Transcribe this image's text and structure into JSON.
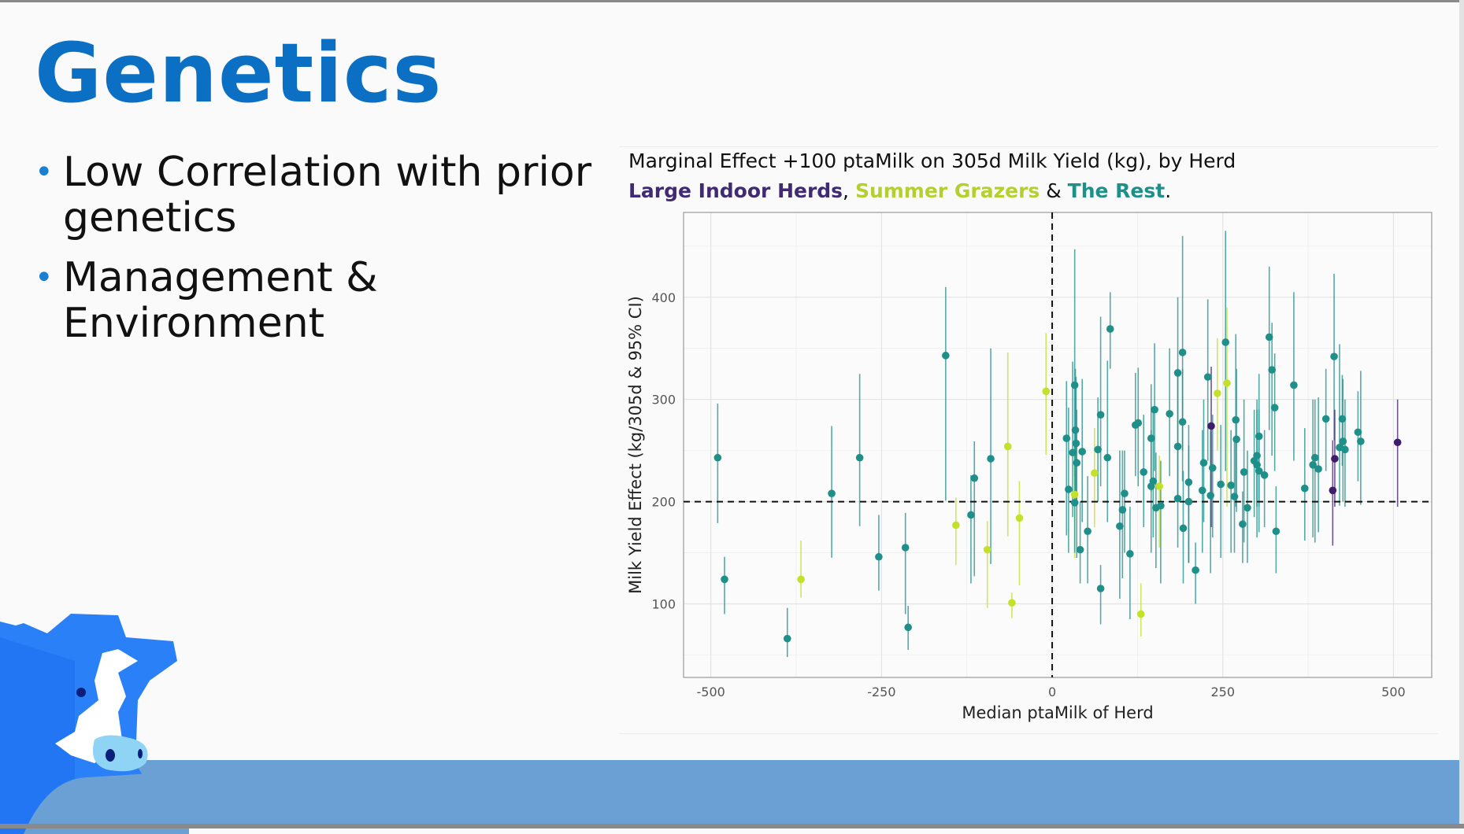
{
  "slide": {
    "title": "Genetics",
    "bullets": [
      "Low Correlation with prior genetics",
      "Management & Environment"
    ],
    "bullet_icon": "bullet-dot",
    "accent": "#0b6fc4",
    "footer_color": "#6aa0d4"
  },
  "chart_data": {
    "type": "scatter",
    "title": "Marginal Effect +100 ptaMilk on 305d Milk Yield (kg), by Herd",
    "subtitle": {
      "groups": [
        {
          "name": "Large Indoor Herds",
          "color": "#3f2a73"
        },
        {
          "name": "Summer Grazers",
          "color": "#b5cf2e"
        },
        {
          "name": "The Rest",
          "color": "#1f8f8a"
        }
      ],
      "sep1": ", ",
      "sep2": " & ",
      "end": "."
    },
    "xlabel": "Median ptaMilk of Herd",
    "ylabel": "Milk Yield Effect (kg/305d & 95% CI)",
    "xlim": [
      -540,
      556
    ],
    "ylim": [
      28,
      483
    ],
    "xticks": [
      -500,
      -250,
      0,
      250,
      500
    ],
    "xtick_labels": [
      "-500",
      "-250",
      "0",
      "250",
      "500"
    ],
    "yticks": [
      100,
      200,
      300,
      400
    ],
    "ytick_labels": [
      "100",
      "200",
      "300",
      "400"
    ],
    "reference_lines": {
      "x": 0,
      "y": 200
    },
    "grid": true,
    "point_fields": [
      "x",
      "y",
      "ci_low",
      "ci_high",
      "group"
    ],
    "points": [
      [
        -490,
        243,
        179,
        296,
        "rest"
      ],
      [
        -480,
        124,
        90,
        146,
        "rest"
      ],
      [
        -388,
        66,
        48,
        96,
        "rest"
      ],
      [
        -368,
        124,
        106,
        162,
        "grazer"
      ],
      [
        -323,
        208,
        145,
        274,
        "rest"
      ],
      [
        -282,
        243,
        176,
        325,
        "rest"
      ],
      [
        -254,
        146,
        113,
        187,
        "rest"
      ],
      [
        -215,
        155,
        90,
        189,
        "rest"
      ],
      [
        -211,
        77,
        55,
        98,
        "rest"
      ],
      [
        -156,
        343,
        201,
        410,
        "rest"
      ],
      [
        -141,
        177,
        138,
        204,
        "grazer"
      ],
      [
        -119,
        187,
        120,
        226,
        "rest"
      ],
      [
        -114,
        223,
        127,
        259,
        "rest"
      ],
      [
        -95,
        153,
        96,
        181,
        "grazer"
      ],
      [
        -90,
        242,
        139,
        350,
        "rest"
      ],
      [
        -65,
        254,
        166,
        346,
        "grazer"
      ],
      [
        -59,
        101,
        86,
        111,
        "grazer"
      ],
      [
        -48,
        184,
        118,
        220,
        "grazer"
      ],
      [
        -9,
        308,
        246,
        365,
        "grazer"
      ],
      [
        21,
        262,
        167,
        318,
        "rest"
      ],
      [
        24,
        212,
        150,
        292,
        "rest"
      ],
      [
        30,
        248,
        185,
        337,
        "rest"
      ],
      [
        33,
        314,
        225,
        447,
        "rest"
      ],
      [
        34,
        270,
        210,
        330,
        "rest"
      ],
      [
        36,
        238,
        145,
        290,
        "rest"
      ],
      [
        33,
        207,
        145,
        250,
        "grazer"
      ],
      [
        33,
        199,
        150,
        260,
        "rest"
      ],
      [
        35,
        257,
        200,
        322,
        "rest"
      ],
      [
        41,
        153,
        120,
        200,
        "rest"
      ],
      [
        44,
        249,
        180,
        320,
        "rest"
      ],
      [
        52,
        171,
        120,
        225,
        "rest"
      ],
      [
        67,
        251,
        200,
        302,
        "rest"
      ],
      [
        62,
        228,
        175,
        272,
        "grazer"
      ],
      [
        71,
        285,
        215,
        381,
        "rest"
      ],
      [
        71,
        115,
        80,
        138,
        "rest"
      ],
      [
        81,
        243,
        180,
        338,
        "rest"
      ],
      [
        85,
        369,
        330,
        405,
        "rest"
      ],
      [
        99,
        176,
        105,
        250,
        "rest"
      ],
      [
        103,
        192,
        125,
        250,
        "rest"
      ],
      [
        106,
        208,
        150,
        250,
        "rest"
      ],
      [
        114,
        149,
        85,
        195,
        "rest"
      ],
      [
        122,
        275,
        225,
        326,
        "rest"
      ],
      [
        126,
        277,
        215,
        331,
        "rest"
      ],
      [
        130,
        90,
        68,
        120,
        "grazer"
      ],
      [
        134,
        229,
        175,
        285,
        "rest"
      ],
      [
        145,
        262,
        210,
        315,
        "rest"
      ],
      [
        145,
        215,
        150,
        270,
        "rest"
      ],
      [
        148,
        220,
        165,
        290,
        "rest"
      ],
      [
        150,
        290,
        230,
        355,
        "rest"
      ],
      [
        152,
        194,
        135,
        248,
        "rest"
      ],
      [
        157,
        215,
        155,
        245,
        "grazer"
      ],
      [
        159,
        196,
        120,
        240,
        "rest"
      ],
      [
        172,
        286,
        225,
        350,
        "rest"
      ],
      [
        184,
        326,
        260,
        400,
        "rest"
      ],
      [
        184,
        254,
        200,
        330,
        "rest"
      ],
      [
        184,
        203,
        155,
        260,
        "rest"
      ],
      [
        191,
        346,
        250,
        460,
        "rest"
      ],
      [
        191,
        278,
        220,
        330,
        "rest"
      ],
      [
        192,
        174,
        120,
        230,
        "rest"
      ],
      [
        200,
        219,
        140,
        275,
        "rest"
      ],
      [
        200,
        200,
        140,
        255,
        "rest"
      ],
      [
        210,
        133,
        100,
        160,
        "rest"
      ],
      [
        220,
        211,
        150,
        270,
        "rest"
      ],
      [
        222,
        238,
        180,
        300,
        "rest"
      ],
      [
        228,
        322,
        240,
        398,
        "rest"
      ],
      [
        232,
        206,
        130,
        270,
        "rest"
      ],
      [
        233,
        274,
        175,
        332,
        "indoor"
      ],
      [
        235,
        233,
        165,
        285,
        "rest"
      ],
      [
        242,
        306,
        250,
        360,
        "grazer"
      ],
      [
        247,
        217,
        145,
        275,
        "rest"
      ],
      [
        254,
        356,
        230,
        465,
        "rest"
      ],
      [
        256,
        316,
        195,
        390,
        "grazer"
      ],
      [
        262,
        216,
        150,
        270,
        "rest"
      ],
      [
        267,
        205,
        150,
        260,
        "rest"
      ],
      [
        269,
        280,
        195,
        364,
        "rest"
      ],
      [
        270,
        261,
        190,
        330,
        "rest"
      ],
      [
        279,
        178,
        140,
        210,
        "rest"
      ],
      [
        281,
        229,
        160,
        300,
        "rest"
      ],
      [
        286,
        194,
        140,
        250,
        "rest"
      ],
      [
        296,
        240,
        185,
        290,
        "rest"
      ],
      [
        300,
        245,
        195,
        300,
        "rest"
      ],
      [
        300,
        236,
        165,
        290,
        "rest"
      ],
      [
        303,
        264,
        195,
        325,
        "rest"
      ],
      [
        303,
        230,
        170,
        290,
        "rest"
      ],
      [
        311,
        226,
        175,
        270,
        "rest"
      ],
      [
        318,
        361,
        270,
        430,
        "rest"
      ],
      [
        322,
        329,
        245,
        375,
        "rest"
      ],
      [
        326,
        292,
        230,
        345,
        "rest"
      ],
      [
        328,
        171,
        130,
        215,
        "rest"
      ],
      [
        354,
        314,
        240,
        405,
        "rest"
      ],
      [
        370,
        213,
        162,
        272,
        "rest"
      ],
      [
        382,
        236,
        165,
        300,
        "rest"
      ],
      [
        385,
        243,
        160,
        300,
        "rest"
      ],
      [
        390,
        232,
        170,
        302,
        "rest"
      ],
      [
        401,
        281,
        230,
        330,
        "rest"
      ],
      [
        411,
        211,
        157,
        260,
        "indoor"
      ],
      [
        413,
        342,
        260,
        423,
        "rest"
      ],
      [
        414,
        242,
        195,
        290,
        "indoor"
      ],
      [
        421,
        253,
        196,
        354,
        "rest"
      ],
      [
        425,
        281,
        235,
        324,
        "rest"
      ],
      [
        426,
        259,
        200,
        320,
        "rest"
      ],
      [
        429,
        251,
        195,
        300,
        "rest"
      ],
      [
        448,
        268,
        220,
        308,
        "rest"
      ],
      [
        452,
        259,
        197,
        328,
        "rest"
      ],
      [
        506,
        258,
        195,
        300,
        "indoor"
      ]
    ],
    "group_colors": {
      "indoor": "#3f1d6b",
      "grazer": "#c3e02a",
      "rest": "#1f8f8a"
    }
  }
}
